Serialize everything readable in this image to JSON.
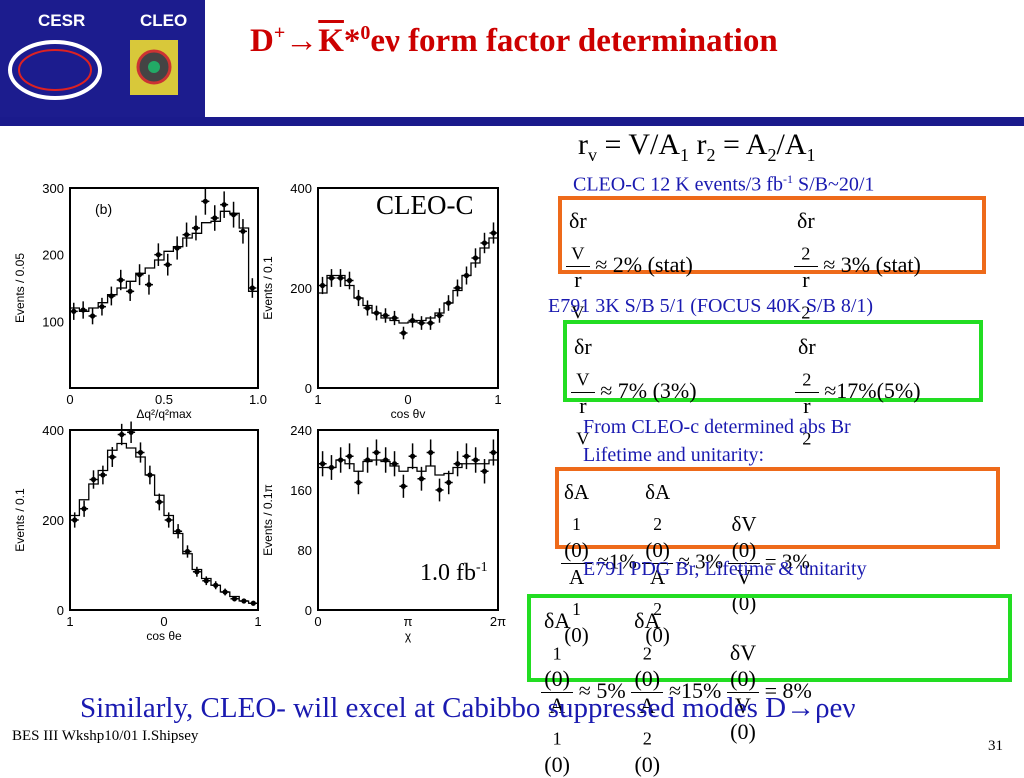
{
  "logo": {
    "left_text": "CESR",
    "right_text": "CLEO"
  },
  "title": {
    "prefix": "D",
    "plus": "+",
    "arrow": "→",
    "k": "K",
    "star": "*",
    "zero": "0",
    "suffix": "eν form factor determination"
  },
  "ratios": {
    "rv": "r",
    "rv_sub": "v",
    "eq1": " = V/A",
    "a1_sub": "1",
    "r2": " r",
    "r2_sub": "2",
    "eq2": " = A",
    "a2_sub": "2",
    "slash": "/A",
    "a1b_sub": "1"
  },
  "cleoc_stats": {
    "text": "CLEO-C 12 K events/3 fb",
    "exp": "-1",
    "tail": " S/B~20/1"
  },
  "cleoc_box": {
    "rv_val": "≈ 2% (stat)",
    "r2_val": "≈ 3% (stat)",
    "color": "#ee6a1a"
  },
  "e791_stats": {
    "text": "E791  3K S/B 5/1 (FOCUS 40K S/B 8/1)"
  },
  "e791_box": {
    "rv_val": "≈ 7%  (3%)",
    "r2_val": "≈17%(5%)",
    "color": "#22dd22"
  },
  "from_cleoc": {
    "line1": "From CLEO-c determined abs Br",
    "line2": "Lifetime and unitarity:"
  },
  "cleoc_ff_box": {
    "a1_val": "≈1%",
    "a2_val": "≈ 3%",
    "v_val": "= 3%",
    "color": "#ee6a1a"
  },
  "e791_pdg": {
    "text": "E791 PDG Br, Lifetime & unitarity"
  },
  "e791_ff_box": {
    "a1_val": "≈ 5%",
    "a2_val": "≈15%",
    "v_val": "= 8%",
    "color": "#22dd22"
  },
  "frac_labels": {
    "dr": "δr",
    "r": "r",
    "sub_v": "V",
    "sub_2": "2",
    "dA": "δA",
    "A": "A",
    "sub_1": "1",
    "arg": "(0)",
    "dV": "δV",
    "V": "V"
  },
  "plot_labels": {
    "cleo_c": "CLEO-C",
    "lumi": "1.0 fb",
    "lumi_exp": "-1"
  },
  "bottom_text": "Similarly, CLEO- will excel at Cabibbo suppressed modes D→ρeν",
  "footer": {
    "conference": "BES III Wkshp10/01 I.Shipsey",
    "page": "31"
  },
  "chart_data": [
    {
      "type": "scatter",
      "panel_label": "(b)",
      "xlabel": "Δq²/q²max",
      "ylabel": "Events / 0.05",
      "xticks": [
        "0",
        "0.5",
        "1.0"
      ],
      "yticks": [
        "100",
        "200",
        "300"
      ],
      "xlim": [
        0,
        1.0
      ],
      "ylim": [
        0,
        300
      ],
      "x": [
        0.02,
        0.07,
        0.12,
        0.17,
        0.22,
        0.27,
        0.32,
        0.37,
        0.42,
        0.47,
        0.52,
        0.57,
        0.62,
        0.67,
        0.72,
        0.77,
        0.82,
        0.87,
        0.92,
        0.97
      ],
      "y": [
        115,
        117,
        108,
        122,
        138,
        162,
        145,
        170,
        155,
        200,
        185,
        210,
        230,
        240,
        280,
        255,
        275,
        260,
        235,
        150
      ],
      "fit_steps": [
        120,
        115,
        120,
        128,
        140,
        150,
        160,
        172,
        180,
        192,
        205,
        212,
        225,
        232,
        248,
        250,
        265,
        262,
        240,
        145
      ]
    },
    {
      "type": "scatter",
      "xlabel": "cos θv",
      "ylabel": "Events / 0.1",
      "xticks": [
        "1",
        "0",
        "1"
      ],
      "yticks": [
        "0",
        "200",
        "400"
      ],
      "xlim": [
        -1,
        1
      ],
      "ylim": [
        0,
        400
      ],
      "x": [
        -0.95,
        -0.85,
        -0.75,
        -0.65,
        -0.55,
        -0.45,
        -0.35,
        -0.25,
        -0.15,
        -0.05,
        0.05,
        0.15,
        0.25,
        0.35,
        0.45,
        0.55,
        0.65,
        0.75,
        0.85,
        0.95
      ],
      "y": [
        205,
        220,
        220,
        215,
        180,
        160,
        150,
        145,
        140,
        110,
        135,
        130,
        130,
        145,
        170,
        200,
        225,
        260,
        290,
        310
      ],
      "fit_steps": [
        190,
        225,
        225,
        205,
        180,
        165,
        150,
        140,
        135,
        130,
        132,
        135,
        140,
        150,
        170,
        195,
        225,
        250,
        280,
        300
      ]
    },
    {
      "type": "scatter",
      "xlabel": "cos θe",
      "ylabel": "Events / 0.1",
      "xticks": [
        "1",
        "0",
        "1"
      ],
      "yticks": [
        "0",
        "200",
        "400"
      ],
      "xlim": [
        -1,
        1
      ],
      "ylim": [
        0,
        400
      ],
      "x": [
        -0.95,
        -0.85,
        -0.75,
        -0.65,
        -0.55,
        -0.45,
        -0.35,
        -0.25,
        -0.15,
        -0.05,
        0.05,
        0.15,
        0.25,
        0.35,
        0.45,
        0.55,
        0.65,
        0.75,
        0.85,
        0.95
      ],
      "y": [
        200,
        225,
        290,
        300,
        340,
        390,
        395,
        350,
        300,
        240,
        200,
        175,
        130,
        85,
        65,
        55,
        40,
        25,
        20,
        15
      ],
      "fit_steps": [
        210,
        245,
        280,
        310,
        355,
        370,
        360,
        340,
        300,
        255,
        210,
        170,
        125,
        90,
        70,
        55,
        40,
        30,
        20,
        15
      ]
    },
    {
      "type": "scatter",
      "xlabel": "χ",
      "ylabel": "Events / 0.1π",
      "xticks": [
        "0",
        "π",
        "2π"
      ],
      "yticks": [
        "0",
        "80",
        "160",
        "240"
      ],
      "xlim": [
        0,
        6.28
      ],
      "ylim": [
        0,
        240
      ],
      "x": [
        0.16,
        0.47,
        0.79,
        1.1,
        1.41,
        1.73,
        2.04,
        2.36,
        2.67,
        2.98,
        3.3,
        3.61,
        3.93,
        4.24,
        4.56,
        4.87,
        5.18,
        5.5,
        5.81,
        6.12
      ],
      "y": [
        195,
        190,
        200,
        205,
        170,
        200,
        210,
        200,
        195,
        165,
        205,
        175,
        210,
        160,
        170,
        195,
        205,
        200,
        185,
        210
      ],
      "fit_steps": [
        190,
        190,
        200,
        195,
        185,
        198,
        200,
        198,
        192,
        185,
        190,
        185,
        192,
        180,
        182,
        190,
        195,
        195,
        195,
        200
      ]
    }
  ]
}
